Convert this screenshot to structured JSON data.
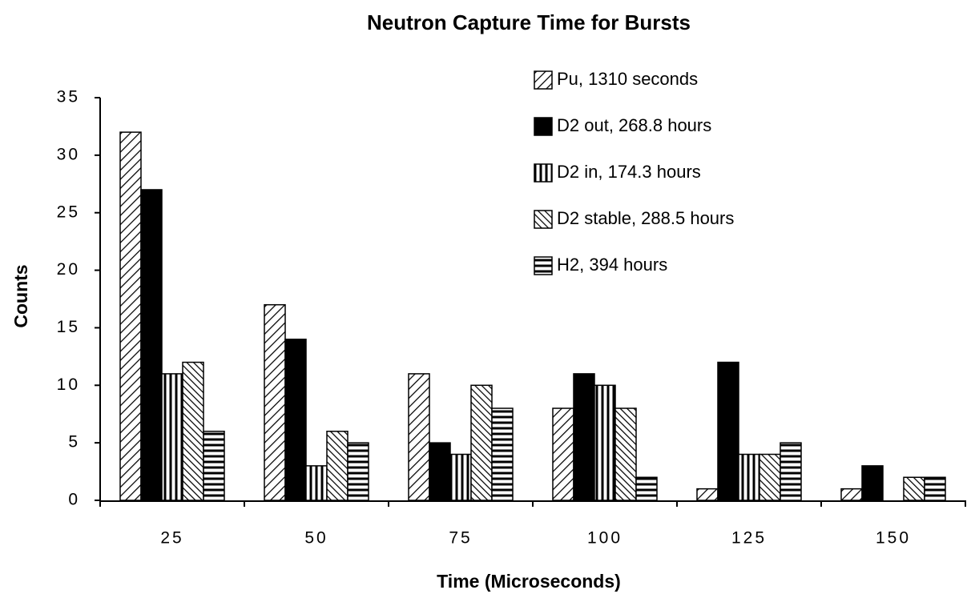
{
  "chart_data": {
    "type": "bar",
    "title": "Neutron Capture Time for Bursts",
    "xlabel": "Time   (Microseconds)",
    "ylabel": "Counts",
    "categories": [
      "25",
      "50",
      "75",
      "100",
      "125",
      "150"
    ],
    "series": [
      {
        "name": "Pu, 1310 seconds",
        "color": "#000000",
        "pattern": "diagonal",
        "values": [
          32,
          17,
          11,
          8,
          1,
          1
        ]
      },
      {
        "name": "D2 out, 268.8 hours",
        "color": "#000000",
        "pattern": "solid",
        "values": [
          27,
          14,
          5,
          11,
          12,
          3
        ]
      },
      {
        "name": "D2 in, 174.3 hours",
        "color": "#000000",
        "pattern": "vertical",
        "values": [
          11,
          3,
          4,
          10,
          4,
          0
        ]
      },
      {
        "name": "D2 stable, 288.5 hours",
        "color": "#000000",
        "pattern": "backslash",
        "values": [
          12,
          6,
          10,
          8,
          4,
          2
        ]
      },
      {
        "name": "H2, 394 hours",
        "color": "#000000",
        "pattern": "horizontal",
        "values": [
          6,
          5,
          8,
          2,
          5,
          2
        ]
      }
    ],
    "ylim": [
      0,
      35
    ],
    "yticks": [
      0,
      5,
      10,
      15,
      20,
      25,
      30,
      35
    ],
    "grid": false,
    "legend": "upper right"
  }
}
